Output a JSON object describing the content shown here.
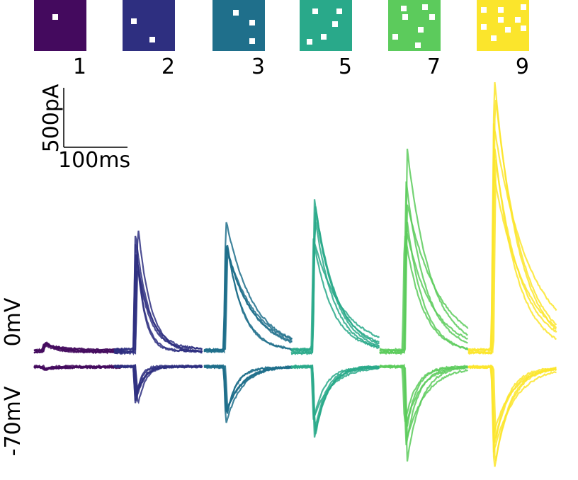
{
  "panels": [
    {
      "label": "1",
      "color": "#440a5e"
    },
    {
      "label": "2",
      "color": "#2e2f80"
    },
    {
      "label": "3",
      "color": "#1f6f8b"
    },
    {
      "label": "5",
      "color": "#29a98a"
    },
    {
      "label": "7",
      "color": "#5ccb5c"
    },
    {
      "label": "9",
      "color": "#fbe52c"
    }
  ],
  "scale_bar": {
    "current": "500pA",
    "time": "100ms"
  },
  "rows": [
    "0mV",
    "-70mV"
  ]
}
